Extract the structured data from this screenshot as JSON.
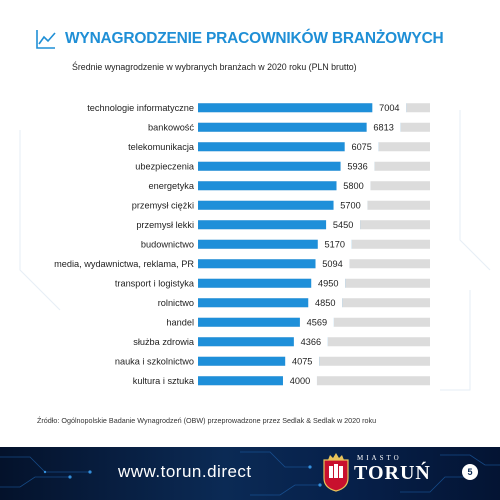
{
  "header": {
    "title": "WYNAGRODZENIE PRACOWNIKÓW BRANŻOWYCH",
    "subtitle": "Średnie wynagrodzenie w wybranych branżach w 2020 roku (PLN brutto)",
    "icon": "line-chart-icon"
  },
  "chart_data": {
    "type": "bar",
    "orientation": "horizontal",
    "title": "",
    "xlabel": "",
    "ylabel": "",
    "categories": [
      "technologie informatyczne",
      "bankowość",
      "telekomunikacja",
      "ubezpieczenia",
      "energetyka",
      "przemysł ciężki",
      "przemysł lekki",
      "budownictwo",
      "media, wydawnictwa, reklama, PR",
      "transport i logistyka",
      "rolnictwo",
      "handel",
      "służba zdrowia",
      "nauka i szkolnictwo",
      "kultura i sztuka"
    ],
    "values": [
      7004,
      6813,
      6075,
      5936,
      5800,
      5700,
      5450,
      5170,
      5094,
      4950,
      4850,
      4569,
      4366,
      4075,
      4000
    ],
    "labels": [
      "7004",
      "6813",
      "6075",
      "5936",
      "5800",
      "5700",
      "5450",
      "5170",
      "5094",
      "4950",
      "4850",
      "4569",
      "4366",
      "4075",
      "4000"
    ],
    "xlim": [
      0,
      7800
    ],
    "bar_color": "#1e8fd9",
    "track_color": "#dcdcdc",
    "label_bg": "#ffffff"
  },
  "source": "Źródło:  Ogólnopolskie Badanie Wynagrodzeń (OBW) przeprowadzone przez Sedlak & Sedlak w 2020 roku",
  "footer": {
    "website": "www.torun.direct",
    "city_small": "MIASTO",
    "city_big": "TORUŃ",
    "page_number": "5",
    "logo": "torun-coat-of-arms"
  },
  "colors": {
    "accent": "#1f8fd6",
    "footer_bg": "#0b2a55"
  }
}
